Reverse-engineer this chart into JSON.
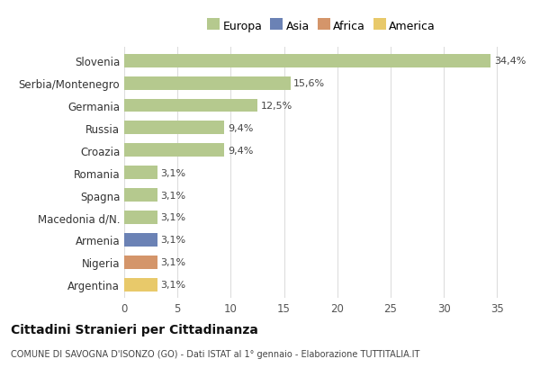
{
  "categories": [
    "Slovenia",
    "Serbia/Montenegro",
    "Germania",
    "Russia",
    "Croazia",
    "Romania",
    "Spagna",
    "Macedonia d/N.",
    "Armenia",
    "Nigeria",
    "Argentina"
  ],
  "values": [
    34.4,
    15.6,
    12.5,
    9.4,
    9.4,
    3.1,
    3.1,
    3.1,
    3.1,
    3.1,
    3.1
  ],
  "labels": [
    "34,4%",
    "15,6%",
    "12,5%",
    "9,4%",
    "9,4%",
    "3,1%",
    "3,1%",
    "3,1%",
    "3,1%",
    "3,1%",
    "3,1%"
  ],
  "colors": [
    "#b5c98e",
    "#b5c98e",
    "#b5c98e",
    "#b5c98e",
    "#b5c98e",
    "#b5c98e",
    "#b5c98e",
    "#b5c98e",
    "#6b82b5",
    "#d4956a",
    "#e8c96a"
  ],
  "legend_labels": [
    "Europa",
    "Asia",
    "Africa",
    "America"
  ],
  "legend_colors": [
    "#b5c98e",
    "#6b82b5",
    "#d4956a",
    "#e8c96a"
  ],
  "title": "Cittadini Stranieri per Cittadinanza",
  "subtitle": "COMUNE DI SAVOGNA D'ISONZO (GO) - Dati ISTAT al 1° gennaio - Elaborazione TUTTITALIA.IT",
  "xlim": [
    0,
    37
  ],
  "xticks": [
    0,
    5,
    10,
    15,
    20,
    25,
    30,
    35
  ],
  "bg_color": "#ffffff",
  "grid_color": "#dddddd",
  "bar_height": 0.6
}
